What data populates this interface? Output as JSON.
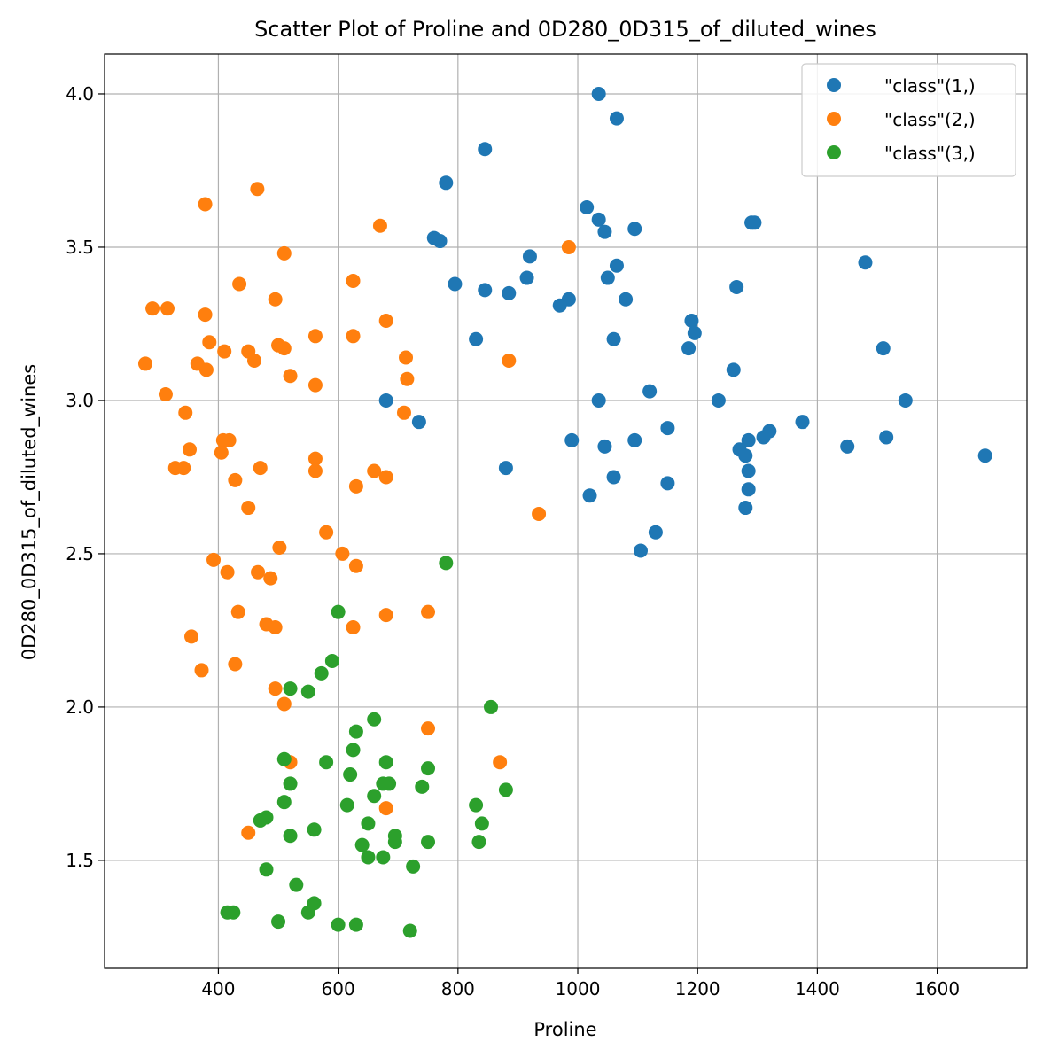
{
  "chart_data": {
    "type": "scatter",
    "title": "Scatter Plot of Proline and 0D280_0D315_of_diluted_wines",
    "xlabel": "Proline",
    "ylabel": "0D280_0D315_of_diluted_wines",
    "xlim": [
      210,
      1750
    ],
    "ylim": [
      1.15,
      4.13
    ],
    "xticks": [
      400,
      600,
      800,
      1000,
      1200,
      1400,
      1600
    ],
    "yticks": [
      1.5,
      2.0,
      2.5,
      3.0,
      3.5,
      4.0
    ],
    "xtick_labels": [
      "400",
      "600",
      "800",
      "1000",
      "1200",
      "1400",
      "1600"
    ],
    "ytick_labels": [
      "1.5",
      "2.0",
      "2.5",
      "3.0",
      "3.5",
      "4.0"
    ],
    "grid": true,
    "legend_position": "top-right",
    "series": [
      {
        "name": "\"class\"(1,)",
        "color": "#1f77b4",
        "points": [
          [
            1035,
            4.0
          ],
          [
            1065,
            3.92
          ],
          [
            845,
            3.82
          ],
          [
            780,
            3.71
          ],
          [
            1015,
            3.63
          ],
          [
            1035,
            3.59
          ],
          [
            1045,
            3.55
          ],
          [
            1095,
            3.56
          ],
          [
            760,
            3.53
          ],
          [
            770,
            3.52
          ],
          [
            1290,
            3.58
          ],
          [
            1295,
            3.58
          ],
          [
            920,
            3.47
          ],
          [
            1480,
            3.45
          ],
          [
            1065,
            3.44
          ],
          [
            915,
            3.4
          ],
          [
            1050,
            3.4
          ],
          [
            795,
            3.38
          ],
          [
            845,
            3.36
          ],
          [
            885,
            3.35
          ],
          [
            1265,
            3.37
          ],
          [
            985,
            3.33
          ],
          [
            970,
            3.31
          ],
          [
            1080,
            3.33
          ],
          [
            1190,
            3.26
          ],
          [
            1195,
            3.22
          ],
          [
            830,
            3.2
          ],
          [
            1060,
            3.2
          ],
          [
            1510,
            3.17
          ],
          [
            1185,
            3.17
          ],
          [
            1260,
            3.1
          ],
          [
            680,
            3.0
          ],
          [
            1120,
            3.03
          ],
          [
            1035,
            3.0
          ],
          [
            1235,
            3.0
          ],
          [
            1547,
            3.0
          ],
          [
            735,
            2.93
          ],
          [
            1375,
            2.93
          ],
          [
            1150,
            2.91
          ],
          [
            1320,
            2.9
          ],
          [
            1310,
            2.88
          ],
          [
            1515,
            2.88
          ],
          [
            990,
            2.87
          ],
          [
            1095,
            2.87
          ],
          [
            1285,
            2.87
          ],
          [
            1045,
            2.85
          ],
          [
            1450,
            2.85
          ],
          [
            1270,
            2.84
          ],
          [
            1280,
            2.82
          ],
          [
            1680,
            2.82
          ],
          [
            880,
            2.78
          ],
          [
            1285,
            2.77
          ],
          [
            1060,
            2.75
          ],
          [
            1150,
            2.73
          ],
          [
            1285,
            2.71
          ],
          [
            1020,
            2.69
          ],
          [
            1280,
            2.65
          ],
          [
            1130,
            2.57
          ],
          [
            1105,
            2.51
          ]
        ]
      },
      {
        "name": "\"class\"(2,)",
        "color": "#ff7f0e",
        "points": [
          [
            465,
            3.69
          ],
          [
            378,
            3.64
          ],
          [
            670,
            3.57
          ],
          [
            985,
            3.5
          ],
          [
            510,
            3.48
          ],
          [
            435,
            3.38
          ],
          [
            625,
            3.39
          ],
          [
            495,
            3.33
          ],
          [
            290,
            3.3
          ],
          [
            315,
            3.3
          ],
          [
            378,
            3.28
          ],
          [
            680,
            3.26
          ],
          [
            562,
            3.21
          ],
          [
            625,
            3.21
          ],
          [
            385,
            3.19
          ],
          [
            500,
            3.18
          ],
          [
            510,
            3.17
          ],
          [
            410,
            3.16
          ],
          [
            450,
            3.16
          ],
          [
            460,
            3.13
          ],
          [
            885,
            3.13
          ],
          [
            278,
            3.12
          ],
          [
            365,
            3.12
          ],
          [
            713,
            3.14
          ],
          [
            380,
            3.1
          ],
          [
            520,
            3.08
          ],
          [
            715,
            3.07
          ],
          [
            562,
            3.05
          ],
          [
            312,
            3.02
          ],
          [
            345,
            2.96
          ],
          [
            710,
            2.96
          ],
          [
            352,
            2.84
          ],
          [
            408,
            2.87
          ],
          [
            418,
            2.87
          ],
          [
            405,
            2.83
          ],
          [
            562,
            2.81
          ],
          [
            328,
            2.78
          ],
          [
            342,
            2.78
          ],
          [
            470,
            2.78
          ],
          [
            562,
            2.77
          ],
          [
            660,
            2.77
          ],
          [
            680,
            2.75
          ],
          [
            428,
            2.74
          ],
          [
            630,
            2.72
          ],
          [
            450,
            2.65
          ],
          [
            935,
            2.63
          ],
          [
            580,
            2.57
          ],
          [
            502,
            2.52
          ],
          [
            607,
            2.5
          ],
          [
            392,
            2.48
          ],
          [
            630,
            2.46
          ],
          [
            415,
            2.44
          ],
          [
            466,
            2.44
          ],
          [
            487,
            2.42
          ],
          [
            433,
            2.31
          ],
          [
            680,
            2.3
          ],
          [
            750,
            2.31
          ],
          [
            480,
            2.27
          ],
          [
            495,
            2.26
          ],
          [
            625,
            2.26
          ],
          [
            355,
            2.23
          ],
          [
            428,
            2.14
          ],
          [
            372,
            2.12
          ],
          [
            495,
            2.06
          ],
          [
            510,
            2.01
          ],
          [
            750,
            1.93
          ],
          [
            520,
            1.82
          ],
          [
            870,
            1.82
          ],
          [
            680,
            1.67
          ],
          [
            450,
            1.59
          ]
        ]
      },
      {
        "name": "\"class\"(3,)",
        "color": "#2ca02c",
        "points": [
          [
            780,
            2.47
          ],
          [
            600,
            2.31
          ],
          [
            590,
            2.15
          ],
          [
            572,
            2.11
          ],
          [
            520,
            2.06
          ],
          [
            550,
            2.05
          ],
          [
            855,
            2.0
          ],
          [
            660,
            1.96
          ],
          [
            630,
            1.92
          ],
          [
            625,
            1.86
          ],
          [
            510,
            1.83
          ],
          [
            580,
            1.82
          ],
          [
            680,
            1.82
          ],
          [
            750,
            1.8
          ],
          [
            620,
            1.78
          ],
          [
            520,
            1.75
          ],
          [
            675,
            1.75
          ],
          [
            685,
            1.75
          ],
          [
            740,
            1.74
          ],
          [
            880,
            1.73
          ],
          [
            660,
            1.71
          ],
          [
            510,
            1.69
          ],
          [
            615,
            1.68
          ],
          [
            830,
            1.68
          ],
          [
            470,
            1.63
          ],
          [
            480,
            1.64
          ],
          [
            840,
            1.62
          ],
          [
            650,
            1.62
          ],
          [
            560,
            1.6
          ],
          [
            520,
            1.58
          ],
          [
            695,
            1.58
          ],
          [
            695,
            1.56
          ],
          [
            750,
            1.56
          ],
          [
            835,
            1.56
          ],
          [
            640,
            1.55
          ],
          [
            675,
            1.51
          ],
          [
            650,
            1.51
          ],
          [
            725,
            1.48
          ],
          [
            480,
            1.47
          ],
          [
            530,
            1.42
          ],
          [
            560,
            1.36
          ],
          [
            415,
            1.33
          ],
          [
            425,
            1.33
          ],
          [
            550,
            1.33
          ],
          [
            500,
            1.3
          ],
          [
            600,
            1.29
          ],
          [
            630,
            1.29
          ],
          [
            720,
            1.27
          ]
        ]
      }
    ]
  }
}
